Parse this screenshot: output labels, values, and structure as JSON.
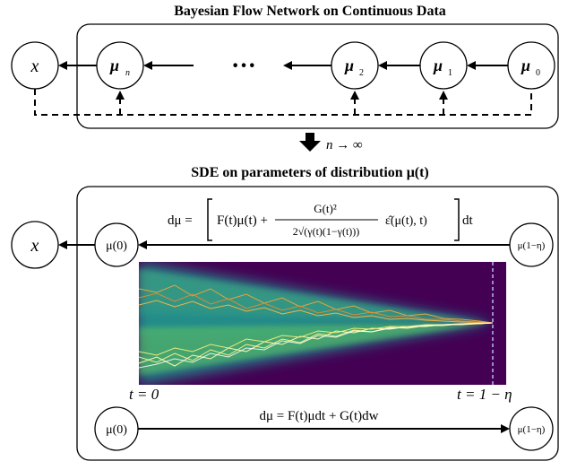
{
  "top": {
    "title": "Bayesian Flow Network on Continuous Data",
    "x_label": "x",
    "nodes": [
      {
        "base": "μ",
        "sub": "n"
      },
      {
        "base": "μ",
        "sub": "2"
      },
      {
        "base": "μ",
        "sub": "1"
      },
      {
        "base": "μ",
        "sub": "0"
      }
    ],
    "ellipsis": "···"
  },
  "limit": {
    "text": "n → ∞"
  },
  "bottom": {
    "title": "SDE on parameters of distribution μ(t)",
    "x_label": "x",
    "left_node": "μ(0)",
    "right_node": "μ(1−η)",
    "reverse_eq_prefix": "dμ =",
    "reverse_eq_F": "F(t)μ(t) +",
    "reverse_eq_frac_num": "G(t)²",
    "reverse_eq_frac_den": "2√(γ(t)(1−γ(t)))",
    "reverse_eq_eps": "ε̂(μ(t), t)",
    "reverse_eq_suffix": "dt",
    "t_left": "t = 0",
    "t_right": "t = 1 − η",
    "forward_eq": "dμ = F(t)μdt + G(t)dw",
    "forward_left_node": "μ(0)",
    "forward_right_node": "μ(1−η)"
  },
  "colors": {
    "bg_dark": "#440154",
    "plume": "#21918c",
    "plume_bright": "#7ad151",
    "trajectory_orange": "#e8a33d",
    "trajectory_yellow": "#f2f08a",
    "dashed_line": "#b8b8f0"
  }
}
